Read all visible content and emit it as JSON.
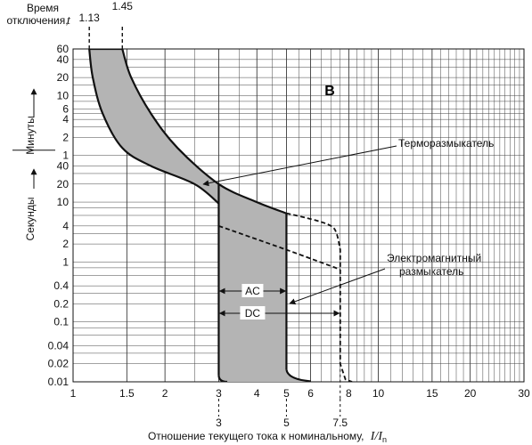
{
  "chart_data": {
    "type": "area",
    "title": "",
    "curve_label": "B",
    "x_scale": "log",
    "y_scale": "log",
    "xlim": [
      1,
      30
    ],
    "ylim_seconds": [
      0.01,
      3600
    ],
    "x_ticks": [
      {
        "value": 1,
        "label": "1"
      },
      {
        "value": 1.5,
        "label": "1.5"
      },
      {
        "value": 2,
        "label": "2"
      },
      {
        "value": 3,
        "label": "3"
      },
      {
        "value": 4,
        "label": "4"
      },
      {
        "value": 5,
        "label": "5"
      },
      {
        "value": 6,
        "label": "6"
      },
      {
        "value": 8,
        "label": "8"
      },
      {
        "value": 10,
        "label": "10"
      },
      {
        "value": 15,
        "label": "15"
      },
      {
        "value": 20,
        "label": "20"
      },
      {
        "value": 30,
        "label": "30"
      }
    ],
    "y_ticks_seconds": [
      {
        "seconds": 0.01,
        "label": "0.01"
      },
      {
        "seconds": 0.02,
        "label": "0.02"
      },
      {
        "seconds": 0.04,
        "label": "0.04"
      },
      {
        "seconds": 0.1,
        "label": "0.1"
      },
      {
        "seconds": 0.2,
        "label": "0.2"
      },
      {
        "seconds": 0.4,
        "label": "0.4"
      },
      {
        "seconds": 1,
        "label": "1"
      },
      {
        "seconds": 2,
        "label": "2"
      },
      {
        "seconds": 4,
        "label": "4"
      },
      {
        "seconds": 10,
        "label": "10"
      },
      {
        "seconds": 20,
        "label": "20"
      },
      {
        "seconds": 40,
        "label": "40"
      }
    ],
    "y_ticks_minutes": [
      {
        "seconds": 60,
        "label": "1"
      },
      {
        "seconds": 120,
        "label": "2"
      },
      {
        "seconds": 240,
        "label": "4"
      },
      {
        "seconds": 360,
        "label": "6"
      },
      {
        "seconds": 600,
        "label": "10"
      },
      {
        "seconds": 1200,
        "label": "20"
      },
      {
        "seconds": 2400,
        "label": "40"
      },
      {
        "seconds": 3600,
        "label": "60"
      }
    ],
    "xlabel": "Отношение текущего тока к номинальному,",
    "xlabel_math": "I/I",
    "xlabel_sub": "n",
    "ylabel_minutes": "Минуты",
    "ylabel_seconds": "Секунды",
    "ylabel_top": [
      "Время",
      "отключения,"
    ],
    "ylabel_top_symbol": "t",
    "top_markers": [
      {
        "value": 1.13,
        "label": "1.13"
      },
      {
        "value": 1.45,
        "label": "1.45"
      }
    ],
    "bottom_markers": [
      {
        "value": 3,
        "label": "3"
      },
      {
        "value": 5,
        "label": "5"
      },
      {
        "value": 7.5,
        "label": "7.5"
      }
    ],
    "thermal_band": {
      "label": "Терморазмыкатель",
      "left_edge": [
        [
          1.13,
          3600
        ],
        [
          1.16,
          1200
        ],
        [
          1.25,
          300
        ],
        [
          1.45,
          80
        ],
        [
          1.8,
          40
        ],
        [
          2.5,
          20
        ],
        [
          3,
          9.5
        ]
      ],
      "right_edge": [
        [
          1.45,
          3600
        ],
        [
          1.55,
          1200
        ],
        [
          1.8,
          300
        ],
        [
          2.2,
          80
        ],
        [
          3,
          20
        ],
        [
          4,
          10
        ],
        [
          5,
          6.5
        ]
      ]
    },
    "magnetic_band": {
      "label": [
        "Электромагнитный",
        "размыкатель"
      ],
      "ac_label": "AC",
      "dc_label": "DC",
      "ac_range": [
        3,
        5
      ],
      "dc_range": [
        3,
        7.5
      ],
      "ac_left_bottom": [
        [
          3,
          0.013
        ],
        [
          3.1,
          0.01
        ]
      ],
      "ac_right_bottom": [
        [
          5,
          0.015
        ],
        [
          5.4,
          0.011
        ],
        [
          6,
          0.01
        ]
      ],
      "dc_outline": [
        [
          5,
          6.5
        ],
        [
          6.2,
          5.0
        ],
        [
          7.0,
          4.0
        ],
        [
          7.3,
          3.0
        ],
        [
          7.5,
          1.6
        ],
        [
          7.5,
          0.02
        ],
        [
          7.8,
          0.011
        ],
        [
          8.2,
          0.01
        ]
      ],
      "dc_lower_dashed": [
        [
          3,
          4.0
        ],
        [
          5,
          1.6
        ],
        [
          7.5,
          0.75
        ]
      ]
    }
  }
}
